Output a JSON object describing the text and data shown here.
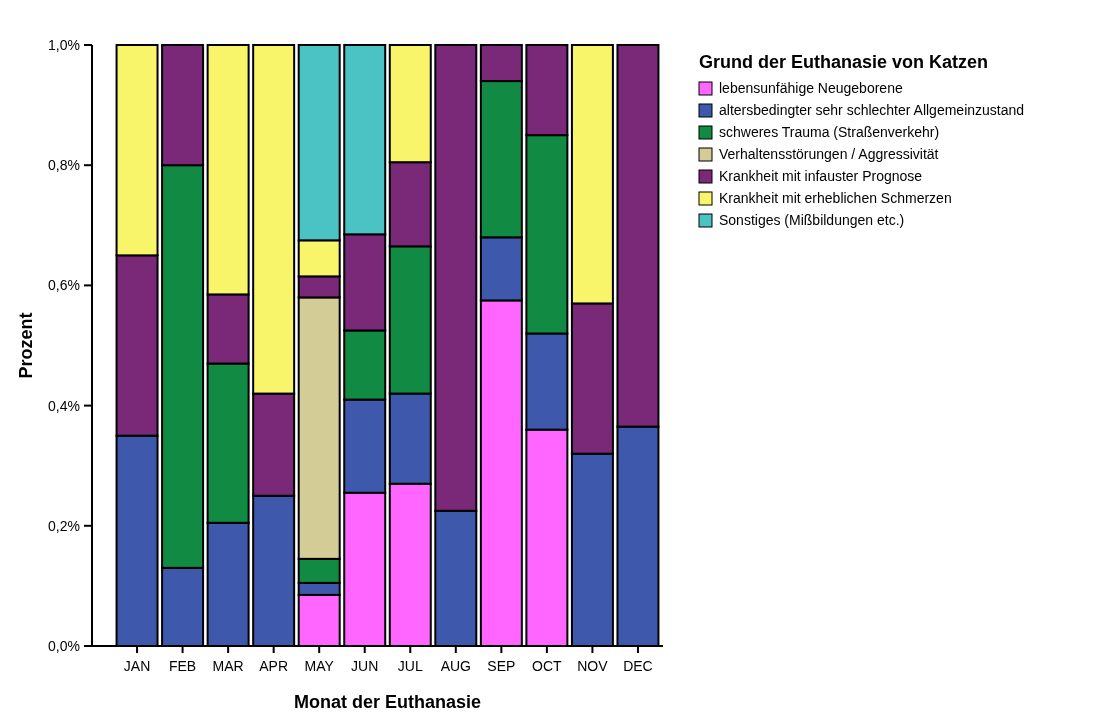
{
  "chart_data": {
    "type": "bar",
    "stacked": true,
    "xlabel": "Monat der Euthanasie",
    "ylabel": "Prozent",
    "legend_title": "Grund der Euthanasie von Katzen",
    "legend": "right",
    "grid": false,
    "categories": [
      "JAN",
      "FEB",
      "MAR",
      "APR",
      "MAY",
      "JUN",
      "JUL",
      "AUG",
      "SEP",
      "OCT",
      "NOV",
      "DEC"
    ],
    "ylim": [
      0,
      1
    ],
    "yticks": [
      {
        "value": 0,
        "label": "0,0%"
      },
      {
        "value": 0.2,
        "label": "0,2%"
      },
      {
        "value": 0.4,
        "label": "0,4%"
      },
      {
        "value": 0.6,
        "label": "0,6%"
      },
      {
        "value": 0.8,
        "label": "0,8%"
      },
      {
        "value": 1,
        "label": "1,0%"
      }
    ],
    "series": [
      {
        "name": "lebensunfähige Neugeborene",
        "color": "#ff66ff",
        "values": [
          0,
          0,
          0,
          0,
          0.085,
          0.255,
          0.27,
          0,
          0.575,
          0.36,
          0,
          0
        ]
      },
      {
        "name": "altersbedingter sehr schlechter Allgemeinzustand",
        "color": "#3e59ab",
        "values": [
          0.35,
          0.13,
          0.205,
          0.25,
          0.02,
          0.155,
          0.15,
          0.225,
          0.105,
          0.16,
          0.32,
          0.365
        ]
      },
      {
        "name": "schweres Trauma (Straßenverkehr)",
        "color": "#118b44",
        "values": [
          0,
          0.67,
          0.265,
          0,
          0.04,
          0.115,
          0.245,
          0,
          0.26,
          0.33,
          0,
          0
        ]
      },
      {
        "name": "Verhaltensstörungen / Aggressivität",
        "color": "#d3cc96",
        "values": [
          0,
          0,
          0,
          0,
          0.435,
          0,
          0,
          0,
          0,
          0,
          0,
          0
        ]
      },
      {
        "name": "Krankheit mit infauster Prognose",
        "color": "#7a2878",
        "values": [
          0.3,
          0.2,
          0.115,
          0.17,
          0.035,
          0.16,
          0.14,
          0.775,
          0.06,
          0.15,
          0.25,
          0.635
        ]
      },
      {
        "name": "Krankheit mit erheblichen Schmerzen",
        "color": "#f9f56b",
        "values": [
          0.35,
          0,
          0.415,
          0.58,
          0.06,
          0,
          0.195,
          0,
          0,
          0,
          0.43,
          0
        ]
      },
      {
        "name": "Sonstiges (Mißbildungen etc.)",
        "color": "#4bc2c4",
        "values": [
          0,
          0,
          0,
          0,
          0.325,
          0.315,
          0,
          0,
          0,
          0,
          0,
          0
        ]
      }
    ]
  }
}
